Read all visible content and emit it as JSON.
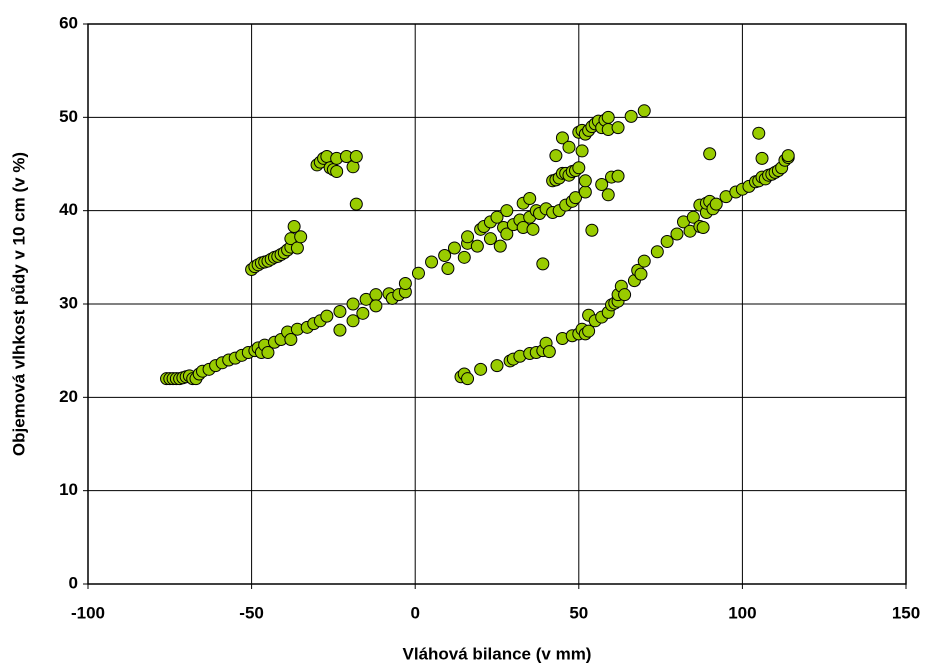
{
  "chart_data": {
    "type": "scatter",
    "x_label": "Vláhová bilance (v mm)",
    "y_label": "Objemová vlhkost půdy v  10 cm (v %)",
    "xlim": [
      -100,
      150
    ],
    "xticks": [
      -100,
      -50,
      0,
      50,
      100,
      150
    ],
    "ylim": [
      0,
      60
    ],
    "yticks": [
      0,
      10,
      20,
      30,
      40,
      50,
      60
    ],
    "grid": true,
    "color": "#99cc00",
    "x": [
      -76,
      -75,
      -74,
      -73,
      -72,
      -71,
      -70,
      -69,
      -68,
      -67,
      -66,
      -65,
      -63,
      -61,
      -59,
      -57,
      -55,
      -53,
      -51,
      -49,
      -48,
      -47,
      -46,
      -45,
      -43,
      -41,
      -39,
      -38,
      -36,
      -33,
      -31,
      -29,
      -27,
      -23,
      -23,
      -19,
      -19,
      -15,
      -16,
      -12,
      -12,
      -8,
      -7,
      -5,
      -3,
      -3,
      1,
      5,
      9,
      10,
      12,
      15,
      16,
      16,
      19,
      20,
      21,
      23,
      23,
      25,
      26,
      27,
      28,
      28,
      30,
      32,
      33,
      33,
      35,
      35,
      36,
      37,
      38,
      39,
      40,
      42,
      43,
      43,
      44,
      45,
      45,
      46,
      47,
      48,
      49,
      50,
      50,
      51,
      51,
      52,
      53,
      54,
      55,
      56,
      57,
      58,
      59,
      59,
      62,
      66,
      70,
      42,
      44,
      46,
      48,
      49,
      47,
      52,
      52,
      54,
      57,
      59,
      60,
      62,
      -50,
      -49,
      -48,
      -47,
      -46,
      -45,
      -44,
      -43,
      -42,
      -41,
      -40,
      -39,
      -38,
      -38,
      -37,
      -36,
      -35,
      -30,
      -29,
      -28,
      -27,
      -26,
      -25,
      -24,
      -24,
      -21,
      -19,
      -18,
      -18,
      14,
      15,
      16,
      20,
      25,
      29,
      30,
      32,
      35,
      37,
      39,
      40,
      41,
      45,
      48,
      50,
      51,
      52,
      53,
      53,
      55,
      57,
      59,
      60,
      61,
      62,
      62,
      63,
      64,
      67,
      68,
      69,
      70,
      74,
      77,
      80,
      82,
      84,
      85,
      87,
      87,
      88,
      89,
      89,
      90,
      91,
      92,
      95,
      98,
      100,
      102,
      104,
      105,
      106,
      107,
      108,
      109,
      110,
      111,
      112,
      113,
      114,
      114,
      90,
      105,
      106
    ],
    "values": [
      22,
      22,
      22,
      22,
      22,
      22.1,
      22.2,
      22.3,
      22,
      22,
      22.5,
      22.8,
      23,
      23.4,
      23.7,
      24,
      24.2,
      24.5,
      24.8,
      25,
      25.3,
      24.8,
      25.6,
      24.8,
      25.9,
      26.2,
      27,
      26.2,
      27.3,
      27.5,
      27.9,
      28.2,
      28.7,
      29.2,
      27.2,
      30,
      28.2,
      30.5,
      29,
      31,
      29.8,
      31.1,
      30.6,
      31,
      31.3,
      32.2,
      33.3,
      34.5,
      35.2,
      33.8,
      36,
      35,
      36.5,
      37.2,
      36.2,
      38,
      38.3,
      37,
      38.8,
      39.3,
      36.2,
      38.2,
      40,
      37.5,
      38.5,
      39,
      40.8,
      38.2,
      41.3,
      39.3,
      38,
      40,
      39.7,
      34.3,
      40.2,
      43.2,
      43.3,
      45.9,
      43.5,
      44,
      47.8,
      44,
      43.8,
      44.2,
      44.3,
      44.6,
      48.4,
      48.6,
      46.4,
      48.2,
      48.6,
      49,
      49.3,
      49.6,
      48.9,
      49.7,
      50,
      48.7,
      48.9,
      50.1,
      50.7,
      39.8,
      40,
      40.6,
      41,
      41.4,
      46.8,
      42,
      43.2,
      37.9,
      42.8,
      41.7,
      43.6,
      43.7,
      33.7,
      34,
      34.2,
      34.4,
      34.5,
      34.6,
      34.8,
      35,
      35.1,
      35.3,
      35.5,
      35.8,
      36.1,
      37,
      38.3,
      36,
      37.2,
      44.9,
      45.2,
      45.6,
      45.8,
      44.6,
      44.4,
      44.2,
      45.6,
      45.8,
      44.7,
      45.8,
      40.7,
      22.2,
      22.5,
      22,
      23,
      23.4,
      23.9,
      24.1,
      24.4,
      24.7,
      24.8,
      25,
      25.8,
      24.9,
      26.3,
      26.6,
      26.8,
      27.3,
      26.8,
      27.1,
      28.8,
      28.2,
      28.6,
      29.1,
      29.9,
      30.1,
      30.3,
      31,
      31.9,
      31,
      32.5,
      33.6,
      33.2,
      34.6,
      35.6,
      36.7,
      37.5,
      38.8,
      37.8,
      39.3,
      40.6,
      38.3,
      38.2,
      39.8,
      40.8,
      41,
      40.2,
      40.7,
      41.5,
      42,
      42.3,
      42.6,
      43.1,
      43.2,
      43.6,
      43.4,
      43.8,
      43.9,
      44.1,
      44.3,
      44.6,
      45.4,
      45.7,
      45.9,
      46.1,
      48.3,
      45.6
    ]
  }
}
